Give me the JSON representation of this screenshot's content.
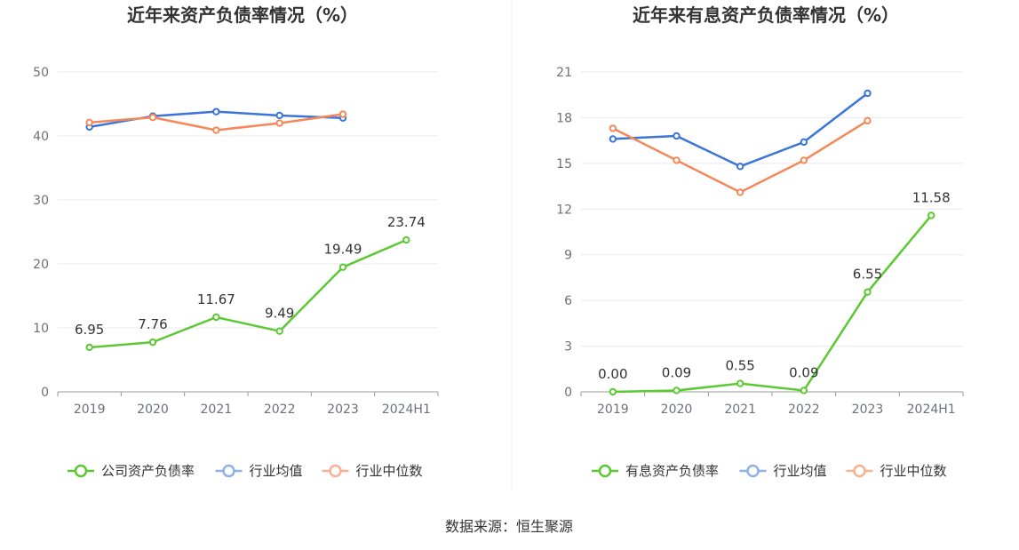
{
  "source_text": "数据来源：恒生聚源",
  "colors": {
    "company": "#5cc933",
    "avg": "#3b75d9",
    "median": "#f5885a",
    "grid": "#e6e9f0",
    "axis": "#999999"
  },
  "chart_data": [
    {
      "type": "line",
      "title": "近年来资产负债率情况（%）",
      "categories": [
        "2019",
        "2020",
        "2021",
        "2022",
        "2023",
        "2024H1"
      ],
      "ylim": [
        0,
        50
      ],
      "yticks": [
        0,
        10,
        20,
        30,
        40,
        50
      ],
      "series": [
        {
          "name": "公司资产负债率",
          "key": "company",
          "values": [
            6.95,
            7.76,
            11.67,
            9.49,
            19.49,
            23.74
          ],
          "labels": [
            "6.95",
            "7.76",
            "11.67",
            "9.49",
            "19.49",
            "23.74"
          ]
        },
        {
          "name": "行业均值",
          "key": "avg",
          "values": [
            41.4,
            43.1,
            43.8,
            43.2,
            42.8,
            null
          ]
        },
        {
          "name": "行业中位数",
          "key": "median",
          "values": [
            42.1,
            42.9,
            40.9,
            42.0,
            43.4,
            null
          ]
        }
      ]
    },
    {
      "type": "line",
      "title": "近年来有息资产负债率情况（%）",
      "categories": [
        "2019",
        "2020",
        "2021",
        "2022",
        "2023",
        "2024H1"
      ],
      "ylim": [
        0,
        21
      ],
      "yticks": [
        0,
        3,
        6,
        9,
        12,
        15,
        18,
        21
      ],
      "series": [
        {
          "name": "有息资产负债率",
          "key": "company",
          "values": [
            0.0,
            0.09,
            0.55,
            0.09,
            6.55,
            11.58
          ],
          "labels": [
            "0.00",
            "0.09",
            "0.55",
            "0.09",
            "6.55",
            "11.58"
          ]
        },
        {
          "name": "行业均值",
          "key": "avg",
          "values": [
            16.6,
            16.8,
            14.8,
            16.4,
            19.6,
            null
          ]
        },
        {
          "name": "行业中位数",
          "key": "median",
          "values": [
            17.3,
            15.2,
            13.1,
            15.2,
            17.8,
            null
          ]
        }
      ]
    }
  ]
}
